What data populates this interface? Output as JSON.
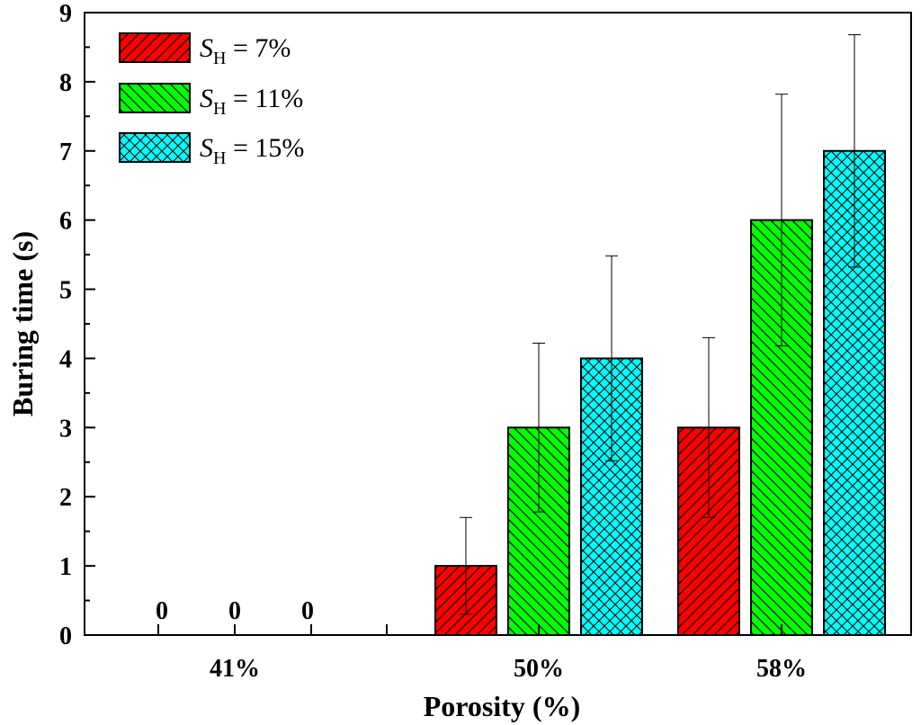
{
  "chart_data": {
    "type": "bar",
    "title": "",
    "xlabel": "Porosity (%)",
    "ylabel": "Buring time (s)",
    "ylim": [
      0,
      9
    ],
    "yticks": [
      "0",
      "1",
      "2",
      "3",
      "4",
      "5",
      "6",
      "7",
      "8",
      "9"
    ],
    "categories": [
      "41%",
      "50%",
      "58%"
    ],
    "series": [
      {
        "name": "S_H = 7%",
        "legend_italic": "S",
        "legend_sub": "H",
        "legend_rest": " = 7%",
        "color": "#ff0000",
        "pattern": "diag-right",
        "values": [
          0,
          1,
          3
        ],
        "errors": [
          0,
          0.7,
          1.3
        ]
      },
      {
        "name": "S_H = 11%",
        "legend_italic": "S",
        "legend_sub": "H",
        "legend_rest": " = 11%",
        "color": "#00ff00",
        "pattern": "diag-left",
        "values": [
          0,
          3,
          6
        ],
        "errors": [
          0,
          1.22,
          1.82
        ]
      },
      {
        "name": "S_H = 15%",
        "legend_italic": "S",
        "legend_sub": "H",
        "legend_rest": " = 15%",
        "color": "#00ffff",
        "pattern": "crosshatch",
        "values": [
          0,
          4,
          7
        ],
        "errors": [
          0,
          1.48,
          1.68
        ]
      }
    ],
    "zero_labels": [
      "0",
      "0",
      "0"
    ],
    "legend_position": "top-left",
    "grid": false
  }
}
